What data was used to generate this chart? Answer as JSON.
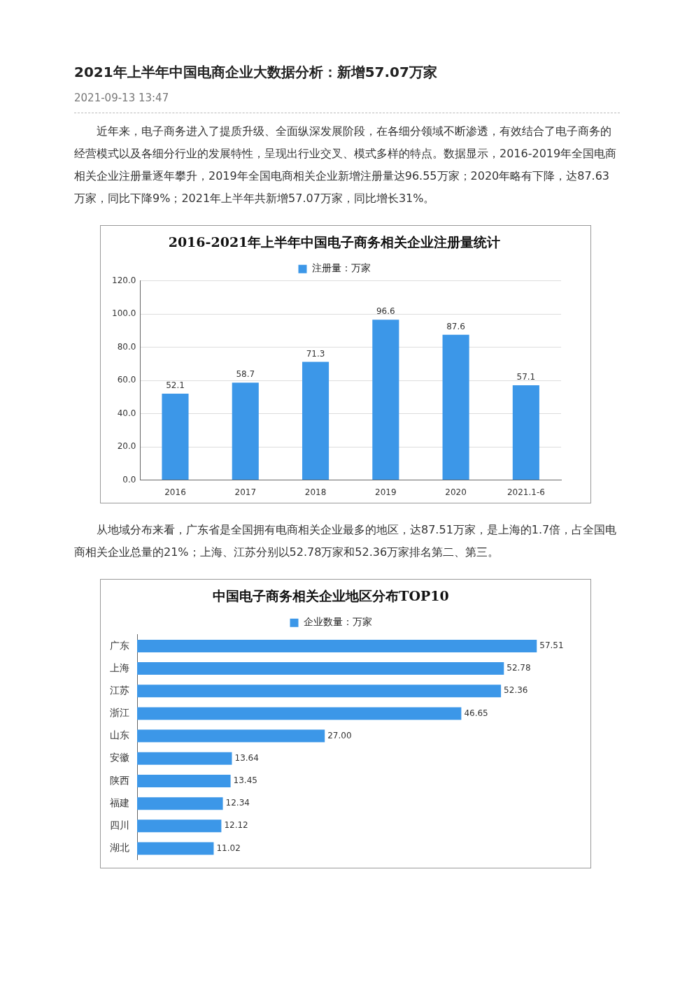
{
  "chart_data": [
    {
      "type": "bar",
      "title": "2016-2021年上半年中国电子商务相关企业注册量统计",
      "annotations": [
        "2021年上半年中国电商企业大数据分析：新增57.07万家",
        "2021-09-13 13:47",
        "近年来，电子商务进入了提质升级、全面纵深发展阶段，在各细分领域不断渗透，有效结合了电子商务的经营模式以及各细分行业的发展特性，呈现出行业交叉、模式多样的特点。数据显示，2016-2019年全国电商相关企业注册量逐年攀升，2019年全国电商相关企业新增注册量达96.55万家；2020年略有下降，达87.63万家，同比下降9%；2021年上半年共新增57.07万家，同比增长31%。"
      ],
      "categories": [
        "2016",
        "2017",
        "2018",
        "2019",
        "2020",
        "2021.1-6"
      ],
      "series": [
        {
          "name": "注册量：万家",
          "color": "#3c97e8",
          "values": [
            52.1,
            58.7,
            71.3,
            96.6,
            87.6,
            57.1
          ]
        }
      ],
      "ylim": [
        0,
        120
      ],
      "yticks": [
        {
          "value": 0,
          "label": "0.0"
        },
        {
          "value": 20,
          "label": "20.0"
        },
        {
          "value": 40,
          "label": "40.0"
        },
        {
          "value": 60,
          "label": "60.0"
        },
        {
          "value": 80,
          "label": "80.0"
        },
        {
          "value": 100,
          "label": "100.0"
        },
        {
          "value": 120,
          "label": "120.0"
        }
      ],
      "grid": "y",
      "legend": "top",
      "data_labels": true
    },
    {
      "type": "bar",
      "orientation": "horizontal",
      "title": "中国电子商务相关企业地区分布TOP10",
      "annotations": [
        "从地域分布来看，广东省是全国拥有电商相关企业最多的地区，达87.51万家，是上海的1.7倍，占全国电商相关企业总量的21%；上海、江苏分别以52.78万家和52.36万家排名第二、第三。"
      ],
      "categories": [
        "广东",
        "上海",
        "江苏",
        "浙江",
        "山东",
        "安徽",
        "陕西",
        "福建",
        "四川",
        "湖北"
      ],
      "series": [
        {
          "name": "企业数量：万家",
          "color": "#3c97e8",
          "values": [
            57.51,
            52.78,
            52.36,
            46.65,
            27.0,
            13.64,
            13.45,
            12.34,
            12.12,
            11.02
          ],
          "value_labels": [
            "57.51",
            "52.78",
            "52.36",
            "46.65",
            "27.00",
            "13.64",
            "13.45",
            "12.34",
            "12.12",
            "11.02"
          ]
        }
      ],
      "tick_labels": "y",
      "legend": "top"
    }
  ]
}
